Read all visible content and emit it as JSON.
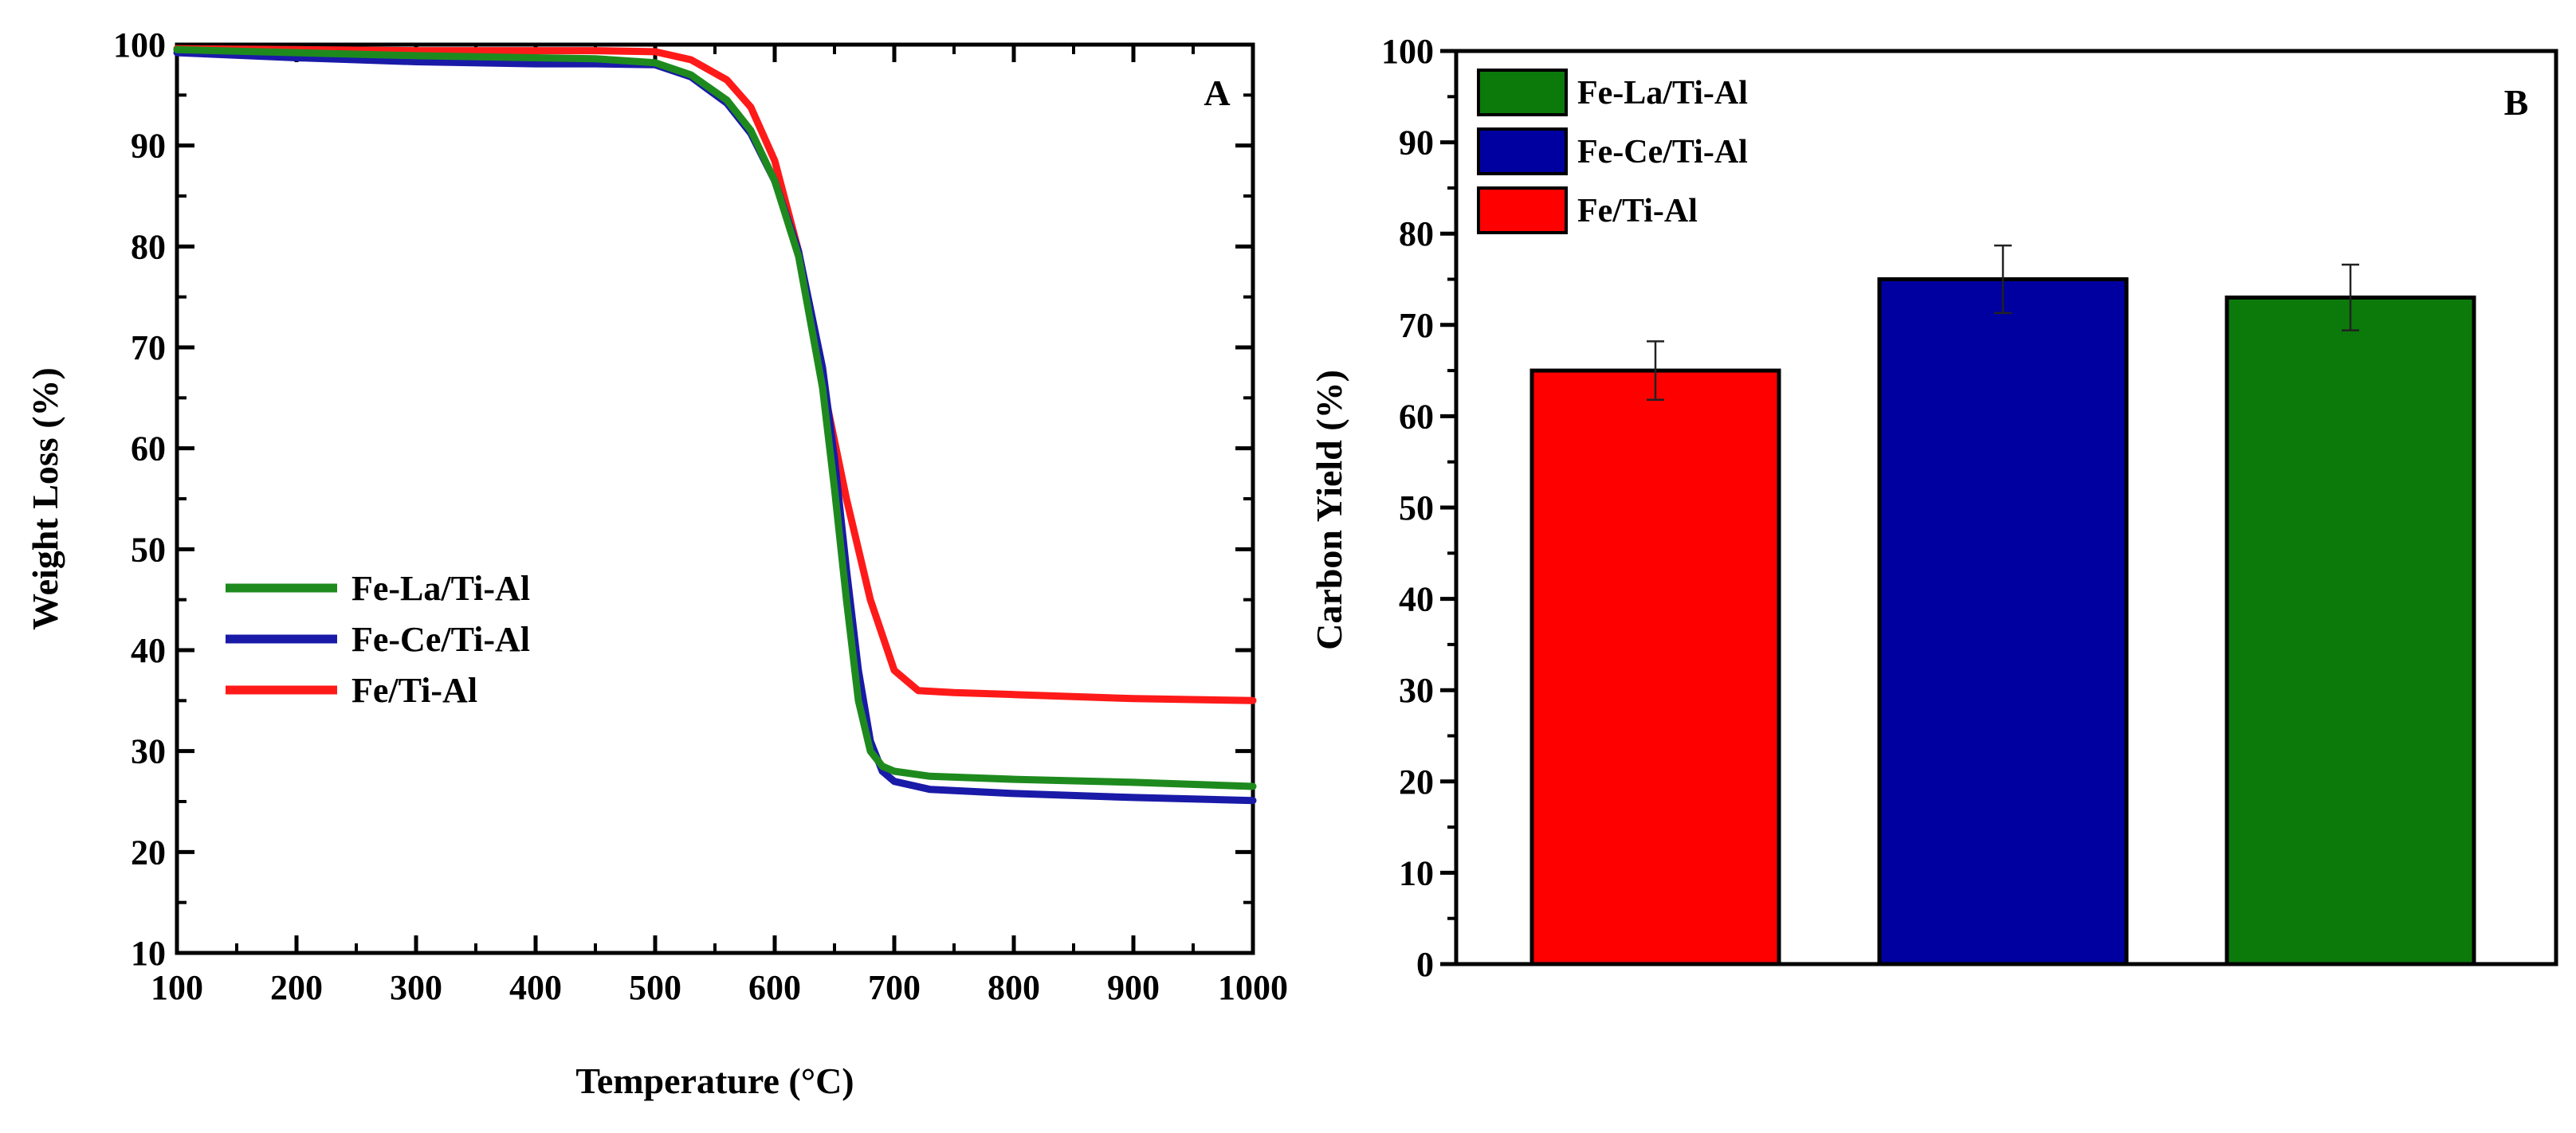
{
  "chart_data": [
    {
      "panel": "A",
      "type": "line",
      "title": "",
      "panel_label": "A",
      "xlabel": "Temperature (°C)",
      "ylabel": "Weight Loss (%)",
      "xlim": [
        100,
        1000
      ],
      "ylim": [
        10,
        100
      ],
      "xticks": [
        100,
        200,
        300,
        400,
        500,
        600,
        700,
        800,
        900,
        1000
      ],
      "yticks": [
        10,
        20,
        30,
        40,
        50,
        60,
        70,
        80,
        90,
        100
      ],
      "grid": false,
      "legend_position": "middle-left",
      "series": [
        {
          "name": "Fe-La/Ti-Al",
          "color": "#1e8a1e",
          "x": [
            100,
            200,
            300,
            400,
            450,
            500,
            530,
            560,
            580,
            600,
            620,
            640,
            650,
            660,
            670,
            680,
            690,
            700,
            730,
            800,
            900,
            1000
          ],
          "y": [
            99.5,
            99.2,
            98.9,
            98.7,
            98.6,
            98.2,
            97,
            94.5,
            91.5,
            86.5,
            79,
            66,
            56,
            45,
            35,
            30,
            28.5,
            28,
            27.5,
            27.2,
            26.9,
            26.5
          ]
        },
        {
          "name": "Fe-Ce/Ti-Al",
          "color": "#1a1aa8",
          "x": [
            100,
            200,
            300,
            400,
            450,
            500,
            530,
            560,
            580,
            600,
            620,
            640,
            650,
            660,
            670,
            680,
            690,
            700,
            730,
            800,
            900,
            1000
          ],
          "y": [
            99.2,
            98.7,
            98.3,
            98.1,
            98.1,
            98.0,
            96.8,
            94.2,
            91.2,
            86.5,
            79.5,
            68,
            59,
            48,
            38,
            31,
            28,
            27,
            26.2,
            25.8,
            25.4,
            25.1
          ]
        },
        {
          "name": "Fe/Ti-Al",
          "color": "#ff1a1a",
          "x": [
            100,
            200,
            300,
            400,
            450,
            500,
            530,
            560,
            580,
            600,
            620,
            640,
            660,
            680,
            700,
            720,
            750,
            800,
            900,
            1000
          ],
          "y": [
            99.6,
            99.5,
            99.4,
            99.4,
            99.4,
            99.3,
            98.5,
            96.5,
            93.8,
            88.5,
            79.5,
            66.5,
            55,
            45,
            38,
            36,
            35.8,
            35.6,
            35.2,
            35.0
          ]
        }
      ]
    },
    {
      "panel": "B",
      "type": "bar",
      "title": "",
      "panel_label": "B",
      "xlabel": "",
      "ylabel": "Carbon Yield (%)",
      "ylim": [
        0,
        100
      ],
      "yticks": [
        0,
        10,
        20,
        30,
        40,
        50,
        60,
        70,
        80,
        90,
        100
      ],
      "grid": false,
      "legend_position": "top-left",
      "legend": [
        {
          "name": "Fe-La/Ti-Al",
          "color": "#0b7a0b"
        },
        {
          "name": "Fe-Ce/Ti-Al",
          "color": "#0000a0"
        },
        {
          "name": "Fe/Ti-Al",
          "color": "#ff0000"
        }
      ],
      "bars": [
        {
          "name": "Fe/Ti-Al",
          "value": 65,
          "error": 3.2,
          "color": "#ff0000"
        },
        {
          "name": "Fe-Ce/Ti-Al",
          "value": 75,
          "error": 3.7,
          "color": "#0000a0"
        },
        {
          "name": "Fe-La/Ti-Al",
          "value": 73,
          "error": 3.6,
          "color": "#0b7a0b"
        }
      ]
    }
  ]
}
